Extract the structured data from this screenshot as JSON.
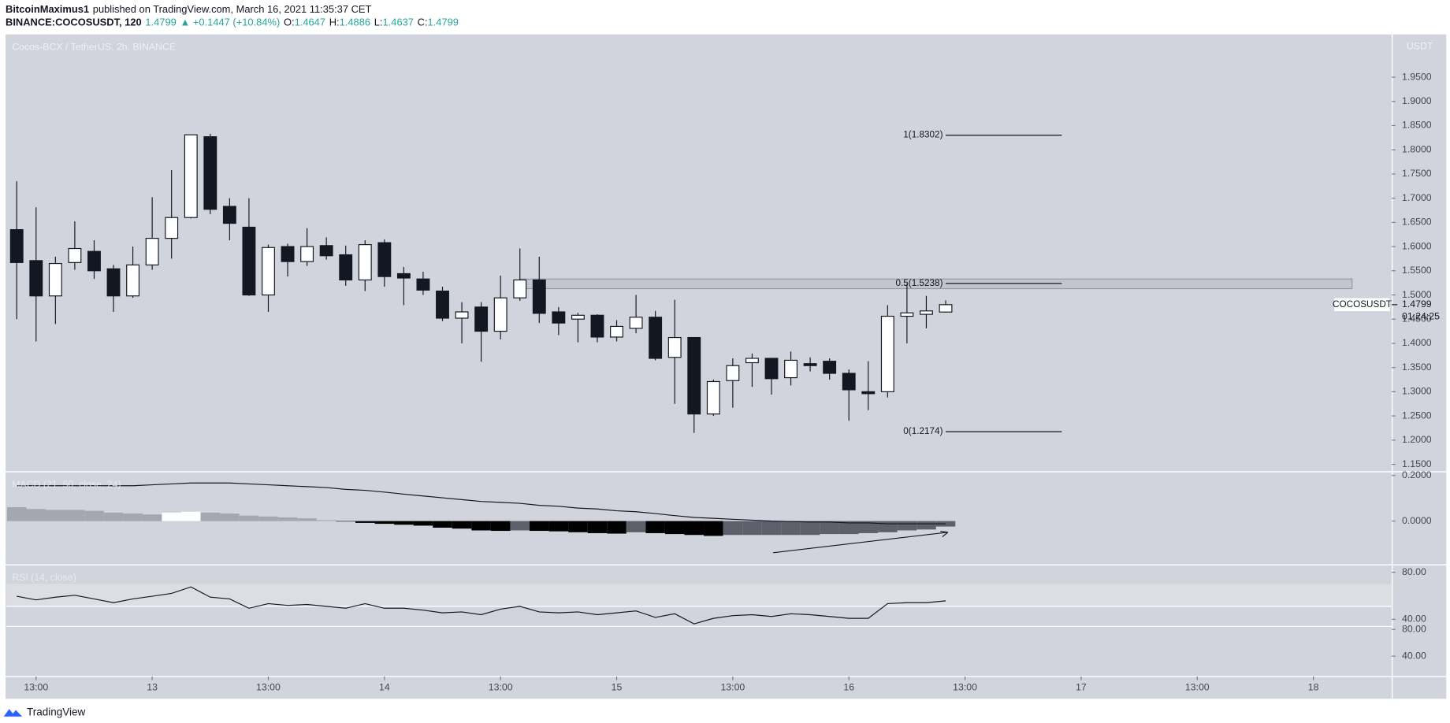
{
  "header": {
    "author": "BitcoinMaximus1",
    "published": "published on TradingView.com, March 16, 2021 11:35:37 CET",
    "symbol": "BINANCE:COCOSUSDT, 120",
    "last": "1.4799",
    "change": "▲ +0.1447 (+10.84%)",
    "ohlc": [
      {
        "key": "O:",
        "value": "1.4647"
      },
      {
        "key": "H:",
        "value": "1.4886"
      },
      {
        "key": "L:",
        "value": "1.4637"
      },
      {
        "key": "C:",
        "value": "1.4799"
      }
    ]
  },
  "footer": {
    "brand": "TradingView"
  },
  "chart_data": [
    {
      "type": "candlestick",
      "title": "Cocos-BCX / TetherUS, 2h, BINANCE",
      "y_unit": "USDT",
      "open": [
        1.635,
        1.571,
        1.498,
        1.567,
        1.59,
        1.554,
        1.498,
        1.562,
        1.617,
        1.66,
        1.827,
        1.683,
        1.64,
        1.5,
        1.6,
        1.569,
        1.602,
        1.583,
        1.531,
        1.608,
        1.544,
        1.533,
        1.508,
        1.452,
        1.475,
        1.425,
        1.494,
        1.531,
        1.465,
        1.45,
        1.458,
        1.413,
        1.431,
        1.454,
        1.371,
        1.412,
        1.254,
        1.323,
        1.36,
        1.369,
        1.329,
        1.358,
        1.363,
        1.338,
        1.3,
        1.3,
        1.456,
        1.46,
        1.4647
      ],
      "high": [
        1.735,
        1.681,
        1.579,
        1.652,
        1.613,
        1.562,
        1.6,
        1.702,
        1.758,
        1.831,
        1.833,
        1.7,
        1.7,
        1.604,
        1.606,
        1.638,
        1.619,
        1.602,
        1.613,
        1.615,
        1.558,
        1.548,
        1.517,
        1.485,
        1.485,
        1.54,
        1.596,
        1.579,
        1.475,
        1.463,
        1.46,
        1.448,
        1.5,
        1.467,
        1.49,
        1.413,
        1.325,
        1.369,
        1.379,
        1.369,
        1.383,
        1.371,
        1.369,
        1.346,
        1.363,
        1.479,
        1.523,
        1.498,
        1.4886
      ],
      "low": [
        1.45,
        1.404,
        1.44,
        1.552,
        1.533,
        1.465,
        1.494,
        1.552,
        1.575,
        1.658,
        1.667,
        1.613,
        1.498,
        1.465,
        1.538,
        1.56,
        1.573,
        1.519,
        1.508,
        1.517,
        1.479,
        1.5,
        1.446,
        1.4,
        1.362,
        1.408,
        1.488,
        1.442,
        1.417,
        1.402,
        1.402,
        1.404,
        1.421,
        1.365,
        1.275,
        1.215,
        1.25,
        1.267,
        1.31,
        1.294,
        1.313,
        1.342,
        1.325,
        1.24,
        1.262,
        1.288,
        1.4,
        1.431,
        1.4637
      ],
      "close": [
        1.567,
        1.498,
        1.565,
        1.596,
        1.55,
        1.498,
        1.562,
        1.617,
        1.66,
        1.831,
        1.677,
        1.648,
        1.5,
        1.598,
        1.569,
        1.6,
        1.581,
        1.531,
        1.604,
        1.538,
        1.535,
        1.51,
        1.452,
        1.465,
        1.425,
        1.494,
        1.531,
        1.462,
        1.442,
        1.458,
        1.413,
        1.435,
        1.454,
        1.369,
        1.412,
        1.254,
        1.321,
        1.354,
        1.369,
        1.327,
        1.365,
        1.354,
        1.338,
        1.304,
        1.296,
        1.456,
        1.463,
        1.467,
        1.4799
      ],
      "colors": {
        "up": "#ffffff",
        "down": "#131722"
      },
      "xlim": [
        -0.53,
        71.05
      ],
      "xticks": [
        {
          "value": 1,
          "label": "13:00"
        },
        {
          "value": 7,
          "label": "13"
        },
        {
          "value": 13,
          "label": "13:00"
        },
        {
          "value": 19,
          "label": "14"
        },
        {
          "value": 25,
          "label": "13:00"
        },
        {
          "value": 31,
          "label": "15"
        },
        {
          "value": 37,
          "label": "13:00"
        },
        {
          "value": 43,
          "label": "16"
        },
        {
          "value": 49,
          "label": "13:00"
        },
        {
          "value": 55,
          "label": "17"
        },
        {
          "value": 61,
          "label": "13:00"
        },
        {
          "value": 67,
          "label": "18"
        }
      ],
      "ylim": [
        1.1365,
        2.0365
      ],
      "yticks": [
        {
          "value": 1.15,
          "label": "1.1500"
        },
        {
          "value": 1.2,
          "label": "1.2000"
        },
        {
          "value": 1.25,
          "label": "1.2500"
        },
        {
          "value": 1.3,
          "label": "1.3000"
        },
        {
          "value": 1.35,
          "label": "1.3500"
        },
        {
          "value": 1.4,
          "label": "1.4000"
        },
        {
          "value": 1.45,
          "label": "1.4500"
        },
        {
          "value": 1.5,
          "label": "1.5000"
        },
        {
          "value": 1.55,
          "label": "1.5500"
        },
        {
          "value": 1.6,
          "label": "1.6000"
        },
        {
          "value": 1.65,
          "label": "1.6500"
        },
        {
          "value": 1.7,
          "label": "1.7000"
        },
        {
          "value": 1.75,
          "label": "1.7500"
        },
        {
          "value": 1.8,
          "label": "1.8000"
        },
        {
          "value": 1.85,
          "label": "1.8500"
        },
        {
          "value": 1.9,
          "label": "1.9000"
        },
        {
          "value": 1.95,
          "label": "1.9500"
        }
      ],
      "fib_levels": [
        {
          "label": "1(1.8302)",
          "value": 1.8302
        },
        {
          "label": "0.5(1.5238)",
          "value": 1.5238
        },
        {
          "label": "0(1.2174)",
          "value": 1.2174
        }
      ],
      "fib_span": [
        48,
        54
      ],
      "zone": {
        "low": 1.513,
        "high": 1.533,
        "span": [
          26,
          69
        ]
      },
      "last_price": {
        "symbol": "COCOSUSDT",
        "value": 1.4799,
        "countdown": "01:24:25"
      }
    },
    {
      "type": "macd",
      "label": "MACD (21, 50, close, 24)",
      "histogram": [
        0.061,
        0.053,
        0.049,
        0.049,
        0.045,
        0.037,
        0.033,
        0.029,
        0.037,
        0.041,
        0.037,
        0.033,
        0.024,
        0.02,
        0.016,
        0.012,
        0.004,
        -0.002,
        -0.008,
        -0.012,
        -0.016,
        -0.02,
        -0.029,
        -0.033,
        -0.041,
        -0.043,
        -0.041,
        -0.043,
        -0.045,
        -0.049,
        -0.053,
        -0.055,
        -0.049,
        -0.053,
        -0.057,
        -0.061,
        -0.065,
        -0.061,
        -0.061,
        -0.061,
        -0.061,
        -0.061,
        -0.057,
        -0.057,
        -0.053,
        -0.049,
        -0.041,
        -0.037,
        -0.024
      ],
      "line": [
        0.155,
        0.155,
        0.155,
        0.155,
        0.155,
        0.155,
        0.155,
        0.159,
        0.163,
        0.167,
        0.167,
        0.167,
        0.163,
        0.159,
        0.155,
        0.151,
        0.147,
        0.139,
        0.135,
        0.127,
        0.118,
        0.11,
        0.102,
        0.094,
        0.086,
        0.082,
        0.078,
        0.069,
        0.065,
        0.057,
        0.053,
        0.045,
        0.041,
        0.033,
        0.024,
        0.016,
        0.012,
        0.008,
        0.004,
        0,
        -0.002,
        -0.004,
        -0.004,
        -0.008,
        -0.008,
        -0.012,
        -0.012,
        -0.012,
        -0.012
      ],
      "colors": {
        "pos_up": "#ffffff",
        "pos_down": "#a5a7b0",
        "neg_down": "#000000",
        "neg_up": "#5d606b",
        "line": "#131722"
      },
      "ylim": [
        -0.1878,
        0.2122
      ],
      "yticks": [
        {
          "value": 0.2,
          "label": "0.2000"
        },
        {
          "value": 0,
          "label": "0.0000"
        }
      ]
    },
    {
      "type": "rsi",
      "label": "RSI (14, close)",
      "values": [
        59.6,
        56.5,
        58.8,
        60.4,
        57.3,
        54.1,
        57.3,
        59.6,
        62.0,
        67.5,
        58.8,
        57.3,
        49.4,
        53.3,
        51.8,
        52.6,
        51.0,
        49.4,
        53.3,
        49.4,
        49.4,
        47.8,
        45.5,
        46.3,
        43.9,
        48.6,
        51.0,
        46.3,
        45.5,
        46.3,
        43.9,
        45.5,
        47.1,
        41.6,
        44.7,
        36.1,
        40.8,
        43.1,
        43.9,
        42.4,
        44.7,
        43.9,
        42.4,
        40.8,
        40.8,
        53.3,
        54.1,
        54.1,
        55.7
      ],
      "color": "#131722",
      "band": [
        51,
        70
      ],
      "lines": [
        51,
        34
      ],
      "ylim": [
        -7.8,
        85.5
      ],
      "yticks": [
        {
          "value": 80,
          "label": "80.00"
        },
        {
          "value": 40,
          "label": "40.00"
        }
      ],
      "y2lim": [
        11.0,
        175.2
      ],
      "y2ticks": [
        {
          "value": 80,
          "label": "80.00"
        },
        {
          "value": 40,
          "label": "40.00"
        }
      ]
    }
  ]
}
